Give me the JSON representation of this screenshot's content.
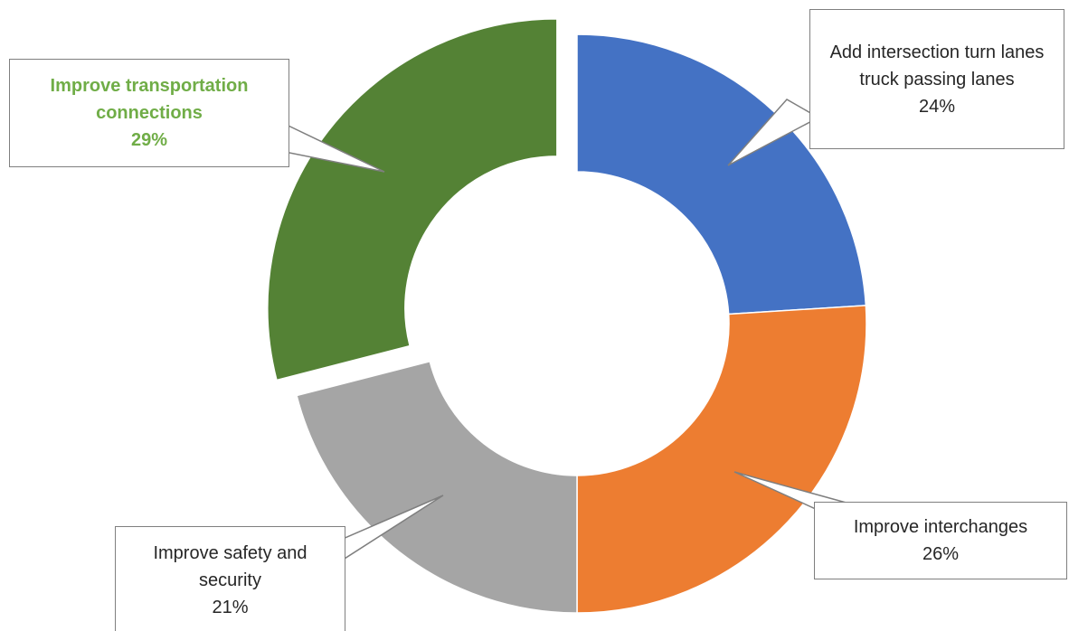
{
  "chart_data": {
    "type": "donut",
    "categories": [
      "Add intersection turn lanes truck passing lanes",
      "Improve interchanges",
      "Improve safety and security",
      "Improve transportation connections"
    ],
    "values": [
      24,
      26,
      21,
      29
    ],
    "value_labels": [
      "24%",
      "26%",
      "21%",
      "29%"
    ],
    "colors": [
      "#4472c4",
      "#ed7d31",
      "#a5a5a5",
      "#548235"
    ]
  }
}
